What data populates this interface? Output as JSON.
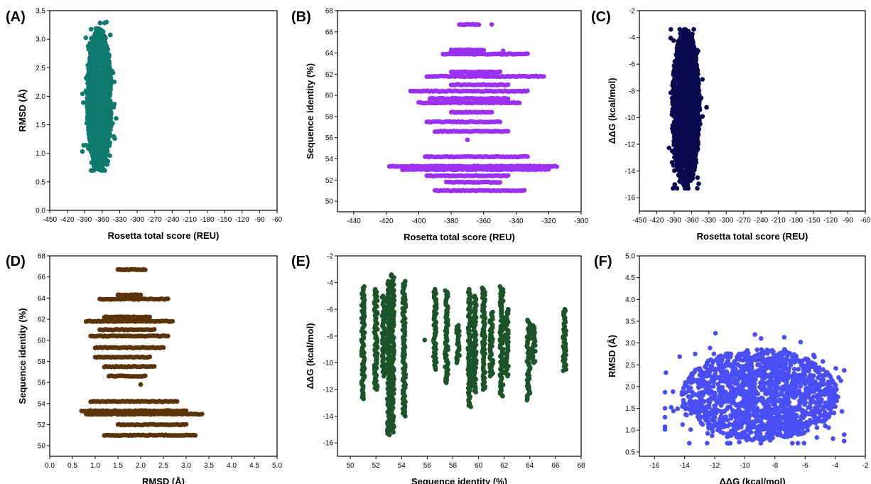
{
  "chart_data": [
    {
      "panel_label": "(A)",
      "type": "scatter",
      "color": "#0e7a6f",
      "xlabel": "Rosetta total score (REU)",
      "ylabel": "RMSD (Å)",
      "xlim": [
        -450,
        -60
      ],
      "ylim": [
        0.0,
        3.5
      ],
      "xticks": [
        -450,
        -420,
        -390,
        -360,
        -330,
        -300,
        -270,
        -240,
        -210,
        -180,
        -150,
        -120,
        -90,
        -60
      ],
      "yticks": [
        "0.0",
        "0.5",
        "1.0",
        "1.5",
        "2.0",
        "2.5",
        "3.0",
        "3.5"
      ],
      "cloud": {
        "shape": "ellipse",
        "cx": -365,
        "cy": 1.95,
        "rx": 21,
        "ry": 1.25,
        "xmin": -425,
        "xmax": -320,
        "ymin": 0.7,
        "ymax": 3.35
      }
    },
    {
      "panel_label": "(B)",
      "type": "scatter",
      "color": "#9b30f0",
      "xlabel": "Rosetta total score (REU)",
      "ylabel": "Sequence identity (%)",
      "xlim": [
        -450,
        -300
      ],
      "ylim": [
        49,
        68
      ],
      "xticks": [
        -440,
        -420,
        -400,
        -380,
        -360,
        -340,
        -320,
        -300
      ],
      "yticks": [
        "50",
        "52",
        "54",
        "56",
        "58",
        "60",
        "62",
        "64",
        "66",
        "68"
      ],
      "rows": [
        {
          "y": 51.0,
          "xmin": -390,
          "xmax": -335
        },
        {
          "y": 51.8,
          "xmin": -383,
          "xmax": -350
        },
        {
          "y": 52.4,
          "xmin": -395,
          "xmax": -345
        },
        {
          "y": 53.0,
          "xmin": -410,
          "xmax": -320
        },
        {
          "y": 53.3,
          "xmin": -418,
          "xmax": -315
        },
        {
          "y": 54.2,
          "xmin": -396,
          "xmax": -333
        },
        {
          "y": 56.6,
          "xmin": -390,
          "xmax": -345
        },
        {
          "y": 57.5,
          "xmin": -395,
          "xmax": -350
        },
        {
          "y": 58.4,
          "xmin": -380,
          "xmax": -355
        },
        {
          "y": 59.3,
          "xmin": -400,
          "xmax": -338
        },
        {
          "y": 59.7,
          "xmin": -393,
          "xmax": -345
        },
        {
          "y": 60.4,
          "xmin": -405,
          "xmax": -333
        },
        {
          "y": 61.0,
          "xmin": -380,
          "xmax": -345
        },
        {
          "y": 61.8,
          "xmin": -395,
          "xmax": -323
        },
        {
          "y": 62.2,
          "xmin": -380,
          "xmax": -350
        },
        {
          "y": 63.9,
          "xmin": -385,
          "xmax": -333
        },
        {
          "y": 64.3,
          "xmin": -380,
          "xmax": -360
        },
        {
          "y": 66.7,
          "xmin": -375,
          "xmax": -363
        }
      ],
      "extra_points": [
        [
          -370,
          55.8
        ],
        [
          -355,
          66.7
        ],
        [
          -348,
          64.2
        ]
      ]
    },
    {
      "panel_label": "(C)",
      "type": "scatter",
      "color": "#0a0a50",
      "xlabel": "Rosetta total score (REU)",
      "ylabel": "ΔΔG (kcal/mol)",
      "xlim": [
        -450,
        -60
      ],
      "ylim": [
        -17,
        -2
      ],
      "xticks": [
        -450,
        -420,
        -390,
        -360,
        -330,
        -300,
        -270,
        -240,
        -210,
        -180,
        -150,
        -120,
        -90,
        -60
      ],
      "yticks": [
        "-16",
        "-14",
        "-12",
        "-10",
        "-8",
        "-6",
        "-4",
        "-2"
      ],
      "cloud": {
        "shape": "ellipse",
        "cx": -370,
        "cy": -9.3,
        "rx": 24,
        "ry": 5.9,
        "xmin": -422,
        "xmax": -330,
        "ymin": -15.3,
        "ymax": -3.4
      }
    },
    {
      "panel_label": "(D)",
      "type": "scatter",
      "color": "#5a3308",
      "xlabel": "RMSD (Å)",
      "ylabel": "Sequence identity (%)",
      "xlim": [
        0.0,
        5.0
      ],
      "ylim": [
        49,
        68
      ],
      "xticks": [
        "0.0",
        "0.5",
        "1.0",
        "1.5",
        "2.0",
        "2.5",
        "3.0",
        "3.5",
        "4.0",
        "4.5",
        "5.0"
      ],
      "yticks": [
        "50",
        "52",
        "54",
        "56",
        "58",
        "60",
        "62",
        "64",
        "66",
        "68"
      ],
      "rows": [
        {
          "y": 51.0,
          "xmin": 1.2,
          "xmax": 3.2
        },
        {
          "y": 52.0,
          "xmin": 1.5,
          "xmax": 3.0
        },
        {
          "y": 53.0,
          "xmin": 0.8,
          "xmax": 3.3
        },
        {
          "y": 53.3,
          "xmin": 0.7,
          "xmax": 3.0
        },
        {
          "y": 54.2,
          "xmin": 0.9,
          "xmax": 2.8
        },
        {
          "y": 56.6,
          "xmin": 1.3,
          "xmax": 2.1
        },
        {
          "y": 57.5,
          "xmin": 1.2,
          "xmax": 2.3
        },
        {
          "y": 58.4,
          "xmin": 1.0,
          "xmax": 2.2
        },
        {
          "y": 59.3,
          "xmin": 1.0,
          "xmax": 2.5
        },
        {
          "y": 60.4,
          "xmin": 0.9,
          "xmax": 2.6
        },
        {
          "y": 61.0,
          "xmin": 1.1,
          "xmax": 2.3
        },
        {
          "y": 61.8,
          "xmin": 0.8,
          "xmax": 2.7
        },
        {
          "y": 62.2,
          "xmin": 1.2,
          "xmax": 2.2
        },
        {
          "y": 63.9,
          "xmin": 1.1,
          "xmax": 2.6
        },
        {
          "y": 64.3,
          "xmin": 1.5,
          "xmax": 2.0
        },
        {
          "y": 66.7,
          "xmin": 1.5,
          "xmax": 2.1
        }
      ],
      "extra_points": [
        [
          2.0,
          55.8
        ],
        [
          3.35,
          53.0
        ]
      ]
    },
    {
      "panel_label": "(E)",
      "type": "scatter",
      "color": "#1b5428",
      "xlabel": "Sequence identity (%)",
      "ylabel": "ΔΔG (kcal/mol)",
      "xlim": [
        49,
        68
      ],
      "ylim": [
        -17,
        -2
      ],
      "xticks": [
        "50",
        "52",
        "54",
        "56",
        "58",
        "60",
        "62",
        "64",
        "66",
        "68"
      ],
      "yticks": [
        "-16",
        "-14",
        "-12",
        "-10",
        "-8",
        "-6",
        "-4",
        "-2"
      ],
      "columns": [
        {
          "x": 51.0,
          "ymin": -12.7,
          "ymax": -4.3
        },
        {
          "x": 52.0,
          "ymin": -12.0,
          "ymax": -4.5
        },
        {
          "x": 52.6,
          "ymin": -11.0,
          "ymax": -5.0
        },
        {
          "x": 53.0,
          "ymin": -15.4,
          "ymax": -3.9
        },
        {
          "x": 53.3,
          "ymin": -15.2,
          "ymax": -3.4
        },
        {
          "x": 54.2,
          "ymin": -14.0,
          "ymax": -3.9
        },
        {
          "x": 56.6,
          "ymin": -10.5,
          "ymax": -4.5
        },
        {
          "x": 57.5,
          "ymin": -11.5,
          "ymax": -4.6
        },
        {
          "x": 58.4,
          "ymin": -10.0,
          "ymax": -7.2
        },
        {
          "x": 59.3,
          "ymin": -13.3,
          "ymax": -4.5
        },
        {
          "x": 59.7,
          "ymin": -12.2,
          "ymax": -5.0
        },
        {
          "x": 60.4,
          "ymin": -12.0,
          "ymax": -4.4
        },
        {
          "x": 61.0,
          "ymin": -11.0,
          "ymax": -6.2
        },
        {
          "x": 61.8,
          "ymin": -12.5,
          "ymax": -4.3
        },
        {
          "x": 62.2,
          "ymin": -11.0,
          "ymax": -6.0
        },
        {
          "x": 63.9,
          "ymin": -12.8,
          "ymax": -6.8
        },
        {
          "x": 64.3,
          "ymin": -10.0,
          "ymax": -7.2
        },
        {
          "x": 66.7,
          "ymin": -10.6,
          "ymax": -6.0
        }
      ],
      "extra_points": [
        [
          55.8,
          -8.3
        ]
      ]
    },
    {
      "panel_label": "(F)",
      "type": "scatter",
      "color": "#4a4ef6",
      "xlabel": "ΔΔG (kcal/mol)",
      "ylabel": "RMSD (Å)",
      "xlim": [
        -17,
        -2
      ],
      "ylim": [
        0.4,
        5.0
      ],
      "xticks": [
        "-16",
        "-14",
        "-12",
        "-10",
        "-8",
        "-6",
        "-4",
        "-2"
      ],
      "yticks": [
        "0.5",
        "1.0",
        "1.5",
        "2.0",
        "2.5",
        "3.0",
        "3.5",
        "4.0",
        "4.5",
        "5.0"
      ],
      "cloud": {
        "shape": "ellipse",
        "cx": -9.0,
        "cy": 1.8,
        "rx": 5.2,
        "ry": 1.05,
        "xmin": -15.3,
        "xmax": -3.4,
        "ymin": 0.7,
        "ymax": 3.35
      }
    }
  ]
}
